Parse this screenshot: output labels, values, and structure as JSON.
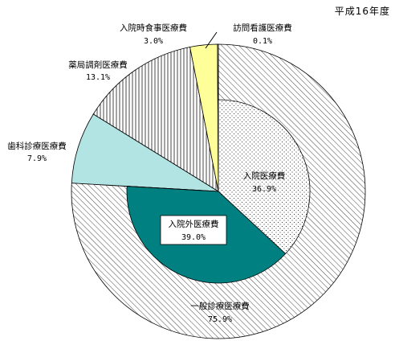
{
  "year_label": "平成16年度",
  "chart_data": [
    {
      "type": "pie",
      "ring": "outer",
      "slices": [
        {
          "name": "一般診療医療費",
          "value": 75.9,
          "label": "75.9%",
          "pattern": "diag"
        },
        {
          "name": "歯科診療医療費",
          "value": 7.9,
          "label": "7.9%",
          "pattern": "light"
        },
        {
          "name": "薬局調剤医療費",
          "value": 13.1,
          "label": "13.1%",
          "pattern": "vlines"
        },
        {
          "name": "入院時食事医療費",
          "value": 3.0,
          "label": "3.0%",
          "pattern": "yellow"
        },
        {
          "name": "訪問看護医療費",
          "value": 0.1,
          "label": "0.1%",
          "pattern": "white"
        }
      ]
    },
    {
      "type": "pie",
      "ring": "inner",
      "slices": [
        {
          "name": "入院医療費",
          "value": 36.9,
          "label": "36.9%",
          "pattern": "dots"
        },
        {
          "name": "入院外医療費",
          "value": 39.0,
          "label": "39.0%",
          "pattern": "teal"
        }
      ]
    }
  ],
  "colors": {
    "teal": "#008080",
    "light_cyan": "#b2e4e4",
    "yellow": "#ffff99",
    "hatch": "#333333",
    "stroke": "#000000"
  }
}
